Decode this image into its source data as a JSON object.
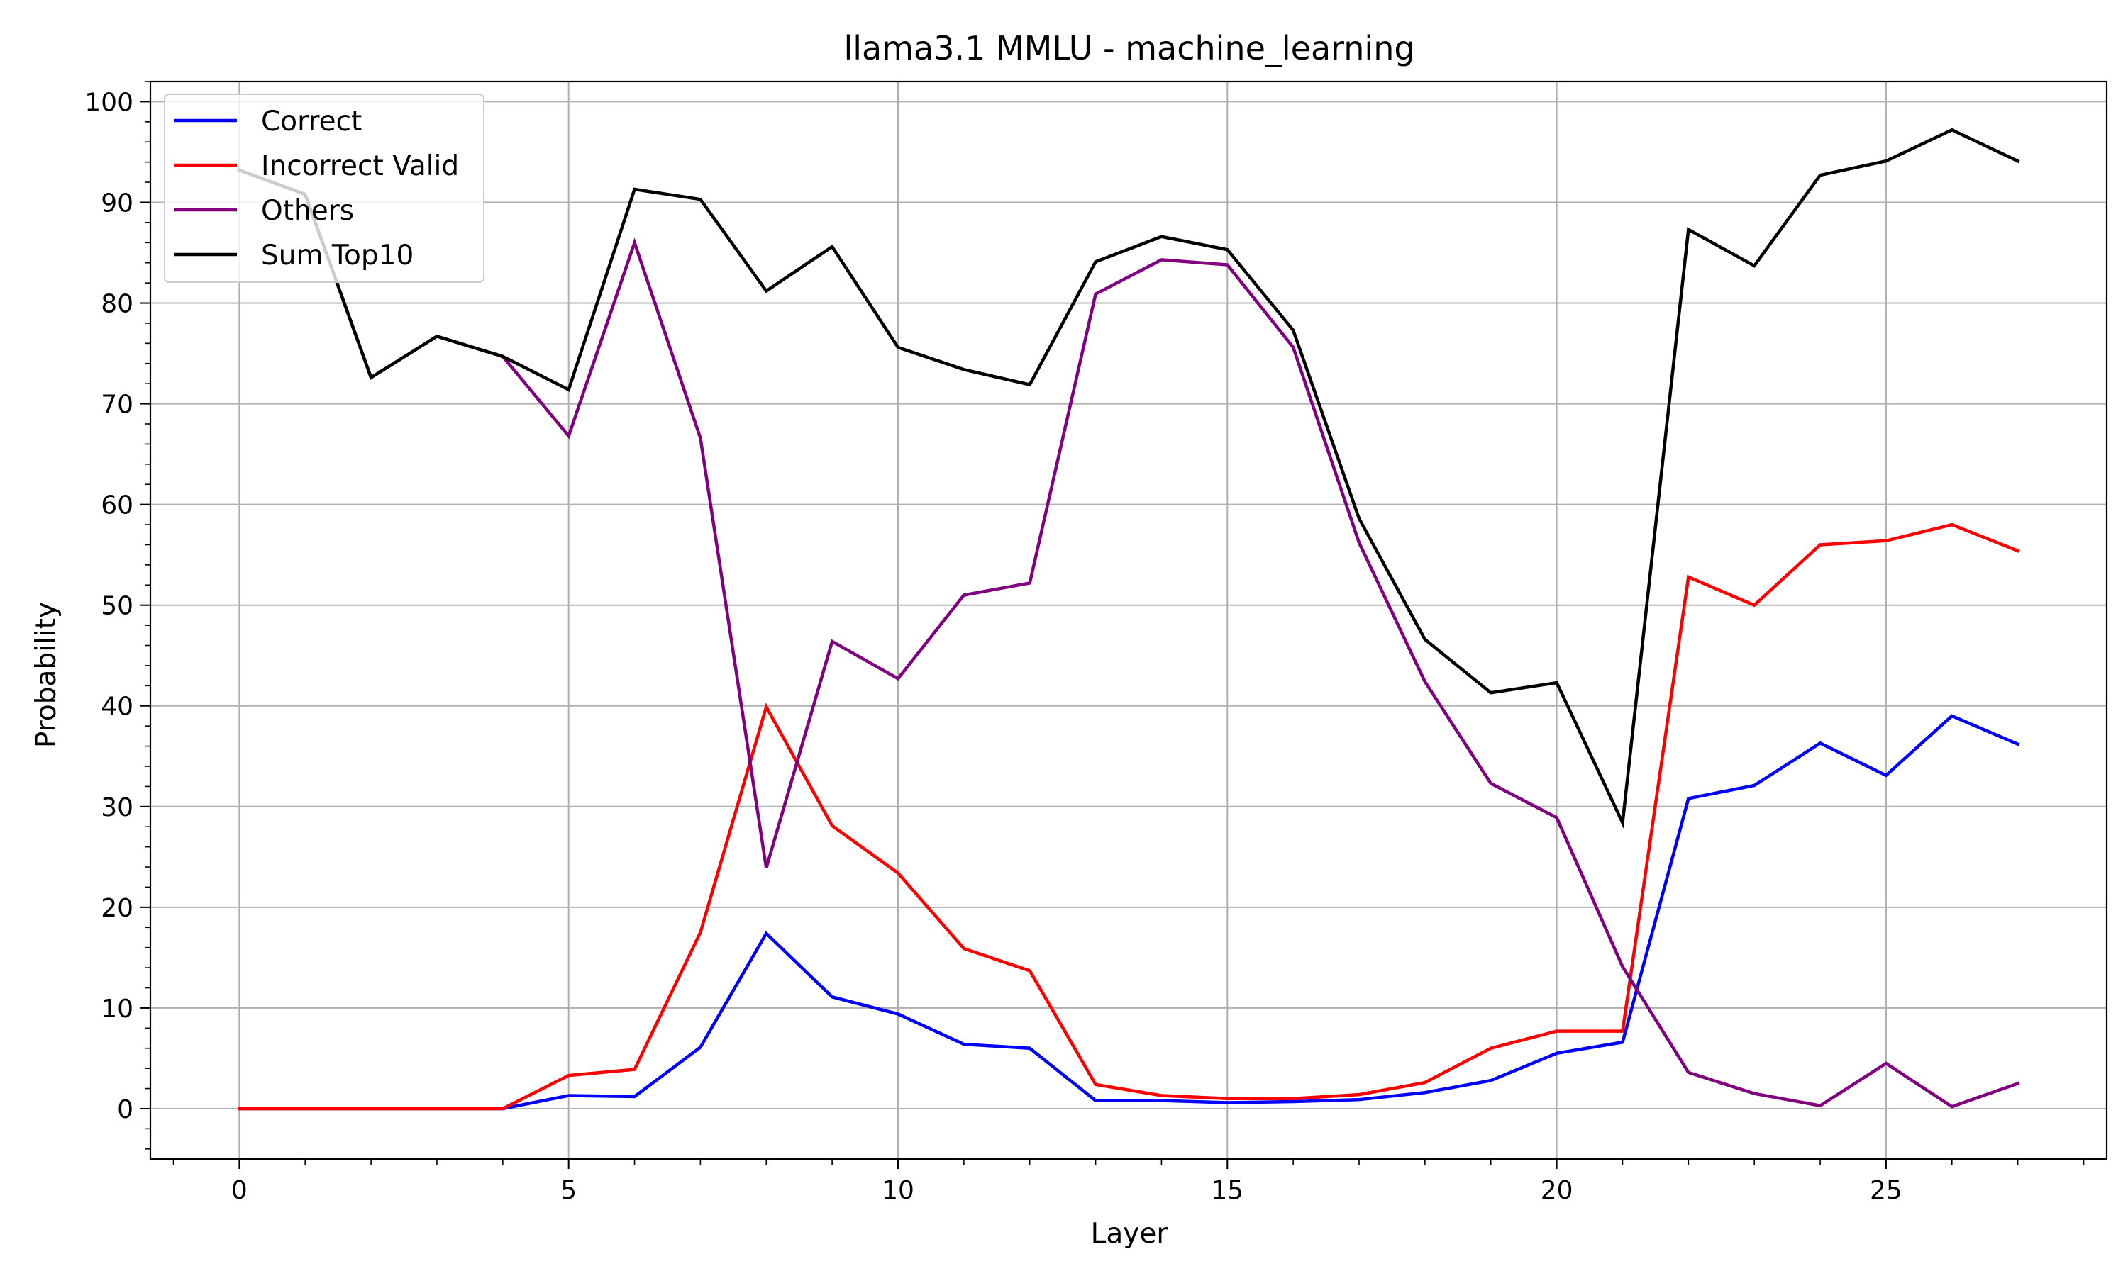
{
  "chart_data": {
    "type": "line",
    "title": "llama3.1 MMLU - machine_learning",
    "xlabel": "Layer",
    "ylabel": "Probability",
    "xlim": [
      -1.35,
      28.35
    ],
    "ylim": [
      -5,
      102
    ],
    "xticks": [
      0,
      5,
      10,
      15,
      20,
      25
    ],
    "yticks": [
      0,
      10,
      20,
      30,
      40,
      50,
      60,
      70,
      80,
      90,
      100
    ],
    "grid": true,
    "legend_position": "upper left",
    "x": [
      0,
      1,
      2,
      3,
      4,
      5,
      6,
      7,
      8,
      9,
      10,
      11,
      12,
      13,
      14,
      15,
      16,
      17,
      18,
      19,
      20,
      21,
      22,
      23,
      24,
      25,
      26,
      27
    ],
    "series": [
      {
        "name": "Correct",
        "color": "#0000ff",
        "values": [
          0,
          0,
          0,
          0,
          0,
          1.3,
          1.2,
          6.1,
          17.4,
          11.1,
          9.4,
          6.4,
          6.0,
          0.8,
          0.8,
          0.6,
          0.7,
          0.9,
          1.6,
          2.8,
          5.5,
          6.6,
          30.8,
          32.1,
          36.3,
          33.1,
          39.0,
          36.2
        ]
      },
      {
        "name": "Incorrect Valid",
        "color": "#ff0000",
        "values": [
          0,
          0,
          0,
          0,
          0,
          3.3,
          3.9,
          17.5,
          39.9,
          28.1,
          23.4,
          15.9,
          13.7,
          2.4,
          1.3,
          1.0,
          1.0,
          1.4,
          2.6,
          6.0,
          7.7,
          7.7,
          52.8,
          50.0,
          56.0,
          56.4,
          58.0,
          55.4
        ]
      },
      {
        "name": "Others",
        "color": "#800080",
        "values": [
          93.2,
          90.8,
          72.6,
          76.7,
          74.7,
          66.8,
          86.0,
          66.6,
          23.9,
          46.4,
          42.7,
          51.0,
          52.2,
          80.9,
          84.3,
          83.8,
          75.6,
          56.2,
          42.4,
          32.3,
          28.9,
          14.1,
          3.6,
          1.5,
          0.3,
          4.5,
          0.2,
          2.5
        ]
      },
      {
        "name": "Sum Top10",
        "color": "#000000",
        "values": [
          93.2,
          90.8,
          72.6,
          76.7,
          74.7,
          71.4,
          91.3,
          90.3,
          81.2,
          85.6,
          75.6,
          73.4,
          71.9,
          84.1,
          86.6,
          85.3,
          77.3,
          58.6,
          46.6,
          41.3,
          42.3,
          28.4,
          87.3,
          83.7,
          92.7,
          94.1,
          97.2,
          94.1
        ]
      }
    ]
  }
}
